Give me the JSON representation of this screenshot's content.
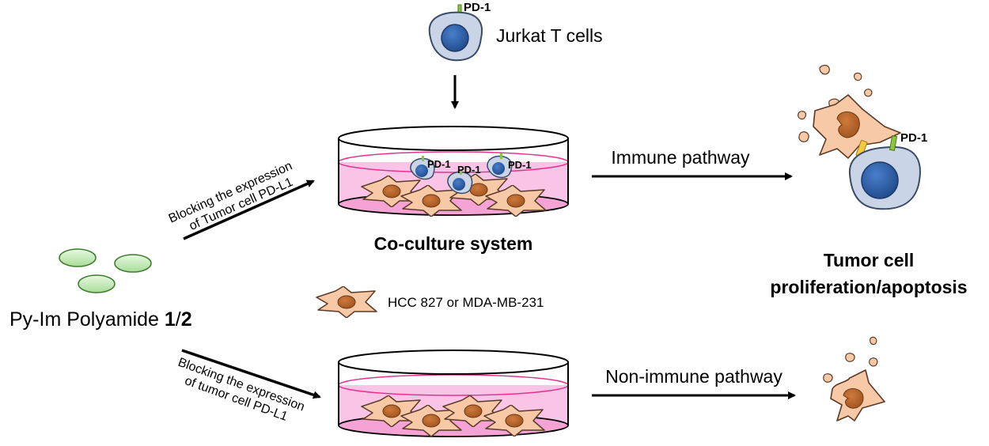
{
  "labels": {
    "jurkat": "Jurkat T cells",
    "pd1": "PD-1",
    "coculture": "Co-culture system",
    "immune_pathway": "Immune pathway",
    "non_immune_pathway": "Non-immune pathway",
    "tumor_outcome_line1": "Tumor cell",
    "tumor_outcome_line2": "proliferation/apoptosis",
    "compound_prefix": "Py-Im Polyamide ",
    "compound_bold1": "1",
    "compound_sep": "/",
    "compound_bold2": "2",
    "cell_line": "HCC 827 or MDA-MB-231",
    "blocking_upper_line1": "Blocking the expression",
    "blocking_upper_line2": "of Tumor cell PD-L1",
    "blocking_lower_line1": "Blocking the expression",
    "blocking_lower_line2": "of tumor cell PD-L1"
  },
  "colors": {
    "tcell_fill": "#c9d5e6",
    "tcell_nucleus": "#2e5ea6",
    "tumor_fill": "#f8c9a6",
    "tumor_nucleus": "#b8672c",
    "medium_fill": "#f9c4e6",
    "medium_line": "#e4338f",
    "polyamide_fill": "#c4ecb8",
    "pd1_receptor": "#8cc63f",
    "pdl1_ligand": "#f5c842"
  }
}
